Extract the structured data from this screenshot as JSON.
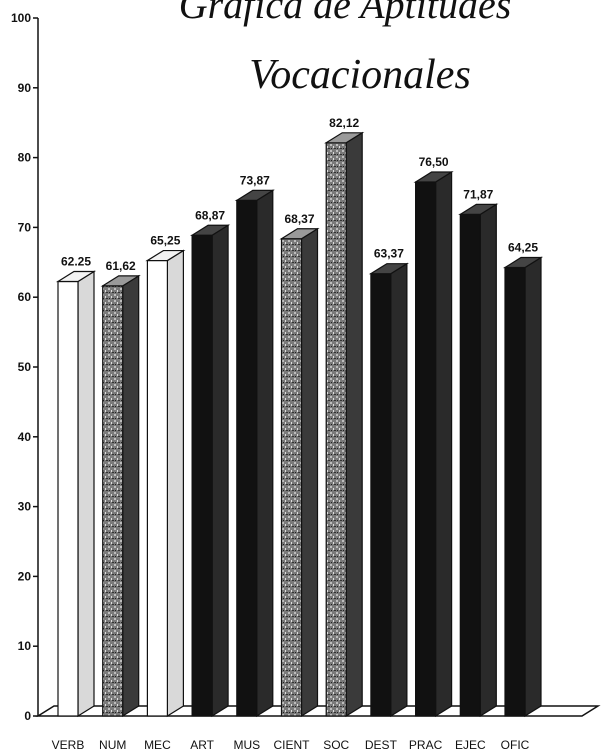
{
  "chart_data": {
    "type": "bar",
    "title_line1": "Gráfica de Aptitudes",
    "title_line2": "Vocacionales",
    "categories": [
      "VERB",
      "NUM",
      "MEC",
      "ART",
      "MUS",
      "CIENT",
      "SOC",
      "DEST",
      "PRAC",
      "EJEC",
      "OFIC"
    ],
    "values": [
      62.25,
      61.62,
      65.25,
      68.87,
      73.87,
      68.37,
      82.12,
      63.37,
      76.5,
      71.87,
      64.25
    ],
    "value_labels": [
      "62.25",
      "61,62",
      "65,25",
      "68,87",
      "73,87",
      "68,37",
      "82,12",
      "63,37",
      "76,50",
      "71,87",
      "64,25"
    ],
    "bar_styles": [
      "white",
      "gray",
      "white",
      "black",
      "black",
      "gray",
      "gray",
      "black",
      "black",
      "black",
      "black"
    ],
    "ylim": [
      0,
      100
    ],
    "yticks": [
      0,
      10,
      20,
      30,
      40,
      50,
      60,
      70,
      80,
      90,
      100
    ],
    "grid": false,
    "three_d": true,
    "colors": {
      "white": "#ffffff",
      "gray": "#8a8a8a",
      "black": "#111111",
      "outline": "#111111"
    }
  }
}
